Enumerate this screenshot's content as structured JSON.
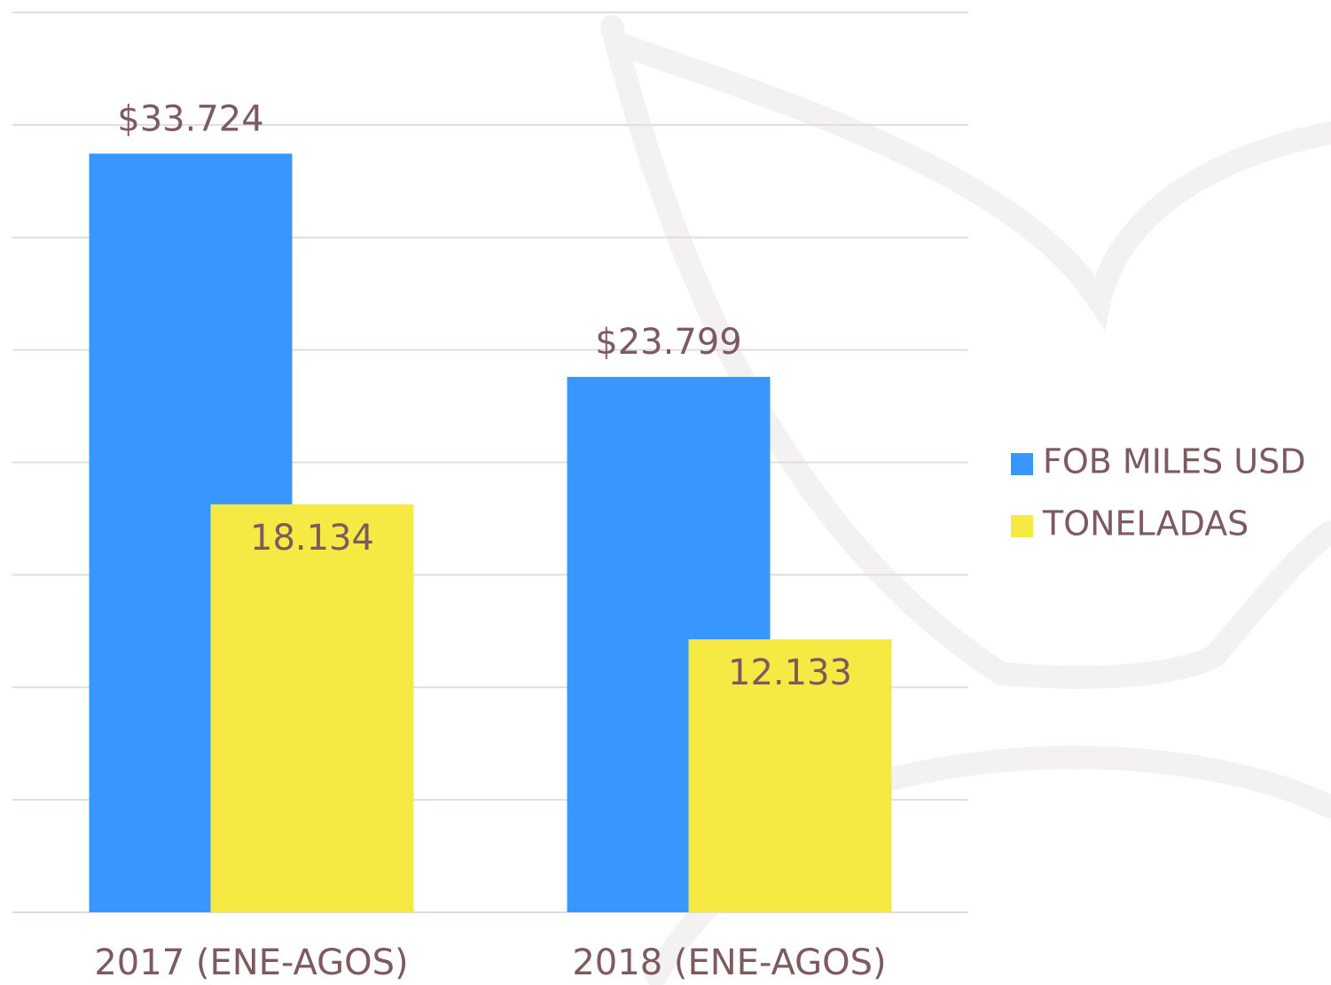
{
  "chart_data": {
    "type": "bar",
    "categories": [
      "2017 (ENE-AGOS)",
      "2018 (ENE-AGOS)"
    ],
    "series": [
      {
        "name": "FOB MILES USD",
        "color": "#3797ff",
        "values": [
          33724,
          23799
        ],
        "value_labels": [
          "$33.724",
          "$23.799"
        ]
      },
      {
        "name": "TONELADAS",
        "color": "#f6e944",
        "values": [
          18134,
          12133
        ],
        "value_labels": [
          "18.134",
          "12.133"
        ]
      }
    ],
    "ylim": [
      0,
      40000
    ],
    "yticks": [
      0,
      5000,
      10000,
      15000,
      20000,
      25000,
      30000,
      35000,
      40000
    ],
    "grid": true,
    "legend": "right"
  }
}
